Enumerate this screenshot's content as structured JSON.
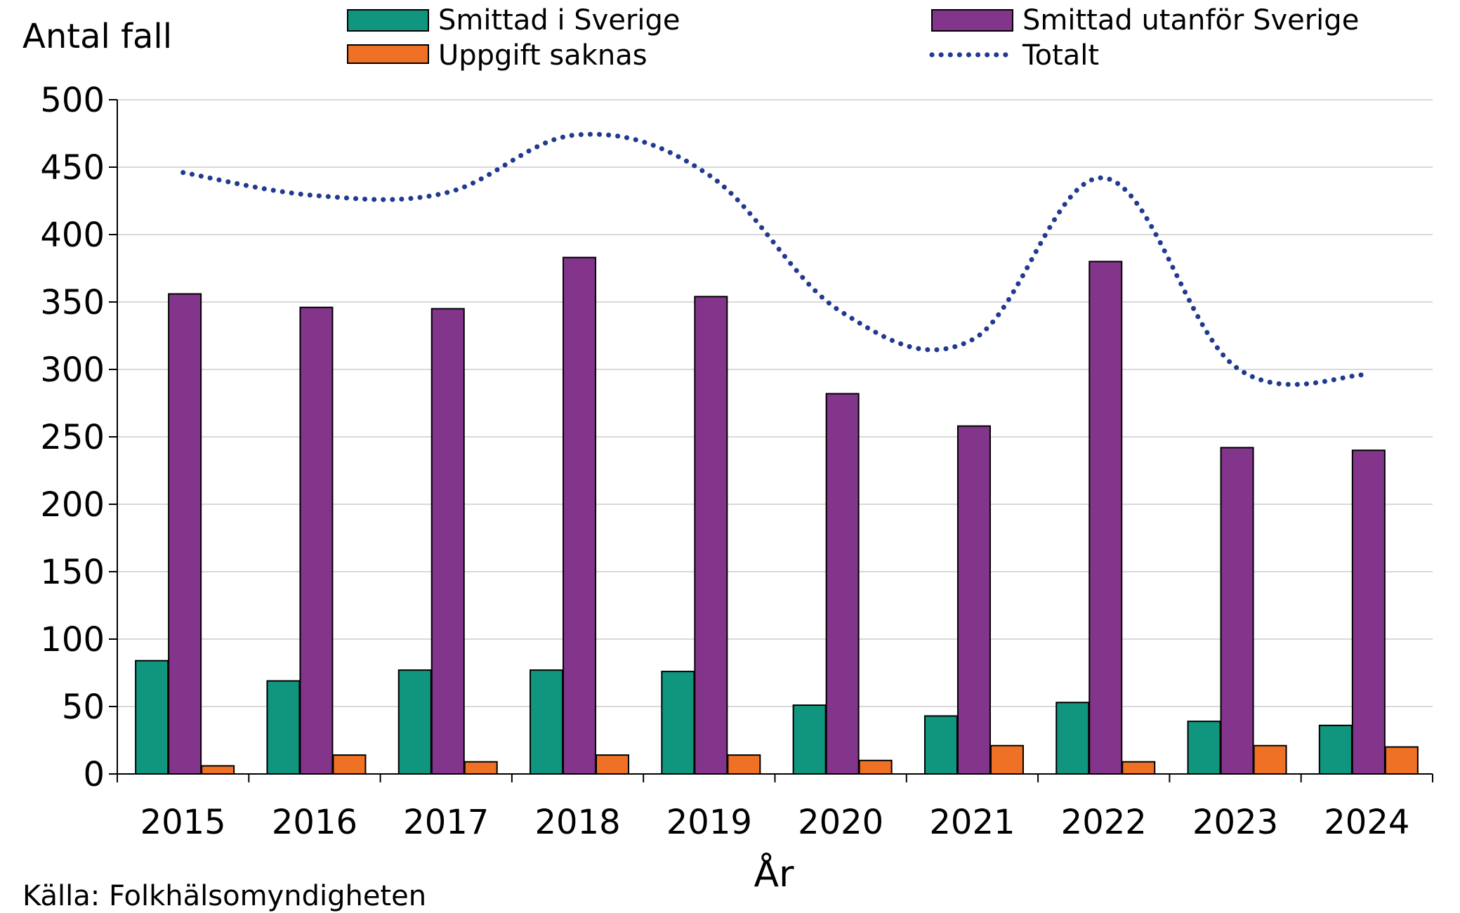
{
  "chart_data": {
    "type": "bar",
    "ylabel": "Antal fall",
    "xlabel": "År",
    "source": "Källa: Folkhälsomyndigheten",
    "ylim": [
      0,
      500
    ],
    "yticks": [
      "0",
      "50",
      "100",
      "150",
      "200",
      "250",
      "300",
      "350",
      "400",
      "450",
      "500"
    ],
    "ytick_values": [
      0,
      50,
      100,
      150,
      200,
      250,
      300,
      350,
      400,
      450,
      500
    ],
    "grid": true,
    "legend_position": "top",
    "categories": [
      "2015",
      "2016",
      "2017",
      "2018",
      "2019",
      "2020",
      "2021",
      "2022",
      "2023",
      "2024"
    ],
    "series": [
      {
        "name": "Smittad i Sverige",
        "kind": "bar",
        "color": "#10967e",
        "values": [
          84,
          69,
          77,
          77,
          76,
          51,
          43,
          53,
          39,
          36
        ]
      },
      {
        "name": "Smittad utanför Sverige",
        "kind": "bar",
        "color": "#83358b",
        "values": [
          356,
          346,
          345,
          383,
          354,
          282,
          258,
          380,
          242,
          240
        ]
      },
      {
        "name": "Uppgift saknas",
        "kind": "bar",
        "color": "#ef7125",
        "values": [
          6,
          14,
          9,
          14,
          14,
          10,
          21,
          9,
          21,
          20
        ]
      },
      {
        "name": "Totalt",
        "kind": "line",
        "style": "dotted",
        "color": "#1f3a8f",
        "values": [
          446,
          429,
          431,
          474,
          444,
          343,
          322,
          442,
          302,
          296
        ]
      }
    ]
  }
}
